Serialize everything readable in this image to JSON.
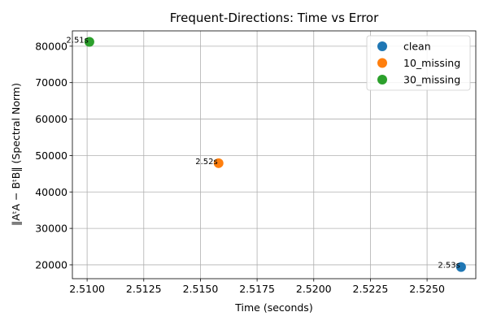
{
  "chart_data": {
    "type": "scatter",
    "title": "Frequent-Directions: Time vs Error",
    "xlabel": "Time (seconds)",
    "ylabel": "‖AᵗA − BᵗB‖ (Spectral Norm)",
    "xlim": [
      2.50935,
      2.52715
    ],
    "ylim": [
      16200,
      84200
    ],
    "xticks": [
      2.51,
      2.5125,
      2.515,
      2.5175,
      2.52,
      2.5225,
      2.525
    ],
    "xtick_labels": [
      "2.5100",
      "2.5125",
      "2.5150",
      "2.5175",
      "2.5200",
      "2.5225",
      "2.5250"
    ],
    "yticks": [
      20000,
      30000,
      40000,
      50000,
      60000,
      70000,
      80000
    ],
    "ytick_labels": [
      "20000",
      "30000",
      "40000",
      "50000",
      "60000",
      "70000",
      "80000"
    ],
    "grid": true,
    "legend_position": "top-right",
    "series": [
      {
        "name": "clean",
        "color": "#1f77b4",
        "x": [
          2.5265
        ],
        "y": [
          19400
        ],
        "labels": [
          "2.53s"
        ]
      },
      {
        "name": "10_missing",
        "color": "#ff7f0e",
        "x": [
          2.5158
        ],
        "y": [
          47900
        ],
        "labels": [
          "2.52s"
        ]
      },
      {
        "name": "30_missing",
        "color": "#2ca02c",
        "x": [
          2.5101
        ],
        "y": [
          81200
        ],
        "labels": [
          "2.51s"
        ]
      }
    ]
  }
}
